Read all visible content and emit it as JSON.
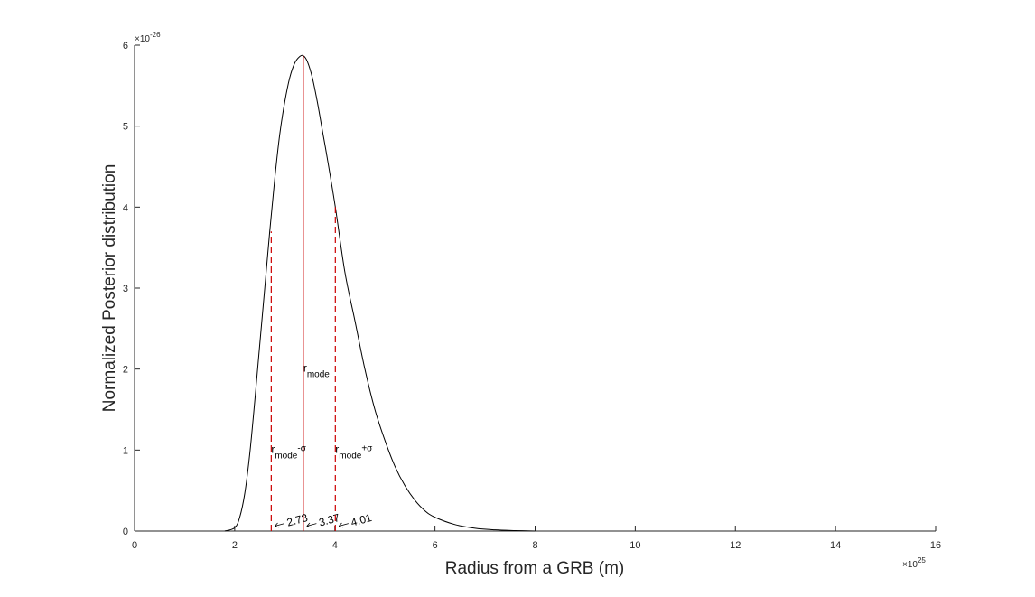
{
  "chart_data": {
    "type": "line",
    "xlabel": "Radius from a GRB (m)",
    "ylabel": "Normalized Posterior distribution",
    "x_exponent": {
      "base": "×10",
      "power": "25"
    },
    "y_exponent": {
      "base": "×10",
      "power": "-26"
    },
    "xlim": [
      0,
      16
    ],
    "ylim": [
      0,
      6
    ],
    "x_ticks": [
      0,
      2,
      4,
      6,
      8,
      10,
      12,
      14,
      16
    ],
    "y_ticks": [
      0,
      1,
      2,
      3,
      4,
      5,
      6
    ],
    "grid": false,
    "legend": false,
    "series": [
      {
        "color": "#000000",
        "x": [
          1.8,
          2.0,
          2.1,
          2.2,
          2.3,
          2.4,
          2.5,
          2.6,
          2.7,
          2.8,
          2.9,
          3.0,
          3.1,
          3.2,
          3.3,
          3.37,
          3.45,
          3.55,
          3.65,
          3.75,
          3.85,
          4.01,
          4.2,
          4.4,
          4.6,
          4.8,
          5.0,
          5.2,
          5.4,
          5.6,
          5.8,
          6.0,
          6.4,
          6.8,
          7.2,
          7.6,
          8.0
        ],
        "y": [
          0.0,
          0.04,
          0.17,
          0.46,
          0.95,
          1.6,
          2.3,
          3.0,
          3.7,
          4.35,
          4.9,
          5.3,
          5.6,
          5.78,
          5.86,
          5.87,
          5.8,
          5.6,
          5.3,
          4.95,
          4.6,
          4.0,
          3.2,
          2.6,
          2.0,
          1.5,
          1.12,
          0.8,
          0.56,
          0.38,
          0.25,
          0.17,
          0.08,
          0.035,
          0.015,
          0.006,
          0.0
        ]
      }
    ],
    "annotations": [
      {
        "label": "r",
        "sub": "mode",
        "sup": "",
        "x": 3.37,
        "y_top": 5.87,
        "text_y": 2.0,
        "style": "solid",
        "color": "#cc0000",
        "arrow_label": "3.37"
      },
      {
        "label": "r",
        "sub": "mode",
        "sup": "-σ",
        "x": 2.73,
        "y_top": 3.7,
        "text_y": 1.0,
        "style": "dashed",
        "color": "#cc0000",
        "arrow_label": "2.73"
      },
      {
        "label": "r",
        "sub": "mode",
        "sup": "+σ",
        "x": 4.01,
        "y_top": 4.0,
        "text_y": 1.0,
        "style": "dashed",
        "color": "#cc0000",
        "arrow_label": "4.01"
      }
    ]
  }
}
